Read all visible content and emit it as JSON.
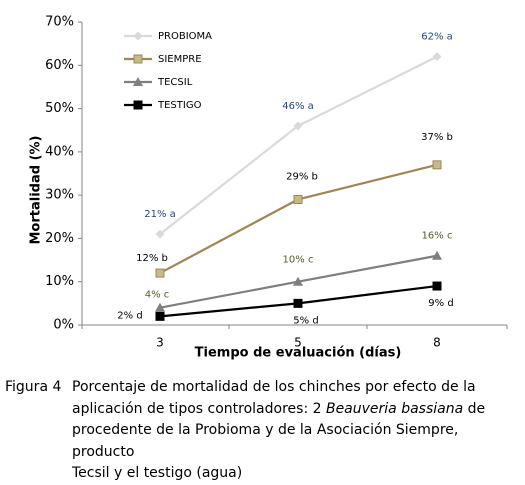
{
  "chart_data": {
    "type": "line",
    "x_label": "Tiempo de evaluación (días)",
    "y_label": "Mortalidad (%)",
    "categories": [
      "3",
      "5",
      "8"
    ],
    "ylim": [
      0,
      70
    ],
    "yticks": [
      {
        "value": 0,
        "label": "0%"
      },
      {
        "value": 10,
        "label": "10%"
      },
      {
        "value": 20,
        "label": "20%"
      },
      {
        "value": 30,
        "label": "30%"
      },
      {
        "value": 40,
        "label": "40%"
      },
      {
        "value": 50,
        "label": "50%"
      },
      {
        "value": 60,
        "label": "60%"
      },
      {
        "value": 70,
        "label": "70%"
      }
    ],
    "legend": "top-left",
    "series": [
      {
        "name": "PROBIOMA",
        "color": "#d9d9d9",
        "marker": "diamond",
        "label_color": "#1f497d",
        "values": [
          21,
          46,
          62
        ],
        "value_labels": [
          "21% a",
          "46% a",
          "62% a"
        ]
      },
      {
        "name": "SIEMPRE",
        "color": "#9c8755",
        "marker": "square",
        "marker_fill": "#c8b98a",
        "label_color": "#000000",
        "values": [
          12,
          29,
          37
        ],
        "value_labels": [
          "12% b",
          "29% b",
          "37% b"
        ]
      },
      {
        "name": "TECSIL",
        "color": "#7f7f7f",
        "marker": "triangle",
        "label_color": "#4f6228",
        "values": [
          4,
          10,
          16
        ],
        "value_labels": [
          "4% c",
          "10% c",
          "16% c"
        ]
      },
      {
        "name": "TESTIGO",
        "color": "#000000",
        "marker": "square",
        "label_color": "#000000",
        "values": [
          2,
          5,
          9
        ],
        "value_labels": [
          "2% d",
          "5% d",
          "9% d"
        ]
      }
    ]
  },
  "caption": {
    "label": "Figura 4",
    "lines": [
      [
        "Porcentaje de mortalidad de los chinches por efecto de la"
      ],
      [
        "aplicación de tipos controladores: 2 ",
        "Beauveria bassiana",
        " de"
      ],
      [
        "procedente de la Probioma y de la Asociación Siempre, producto"
      ],
      [
        "Tecsil y el testigo (agua)"
      ]
    ]
  }
}
